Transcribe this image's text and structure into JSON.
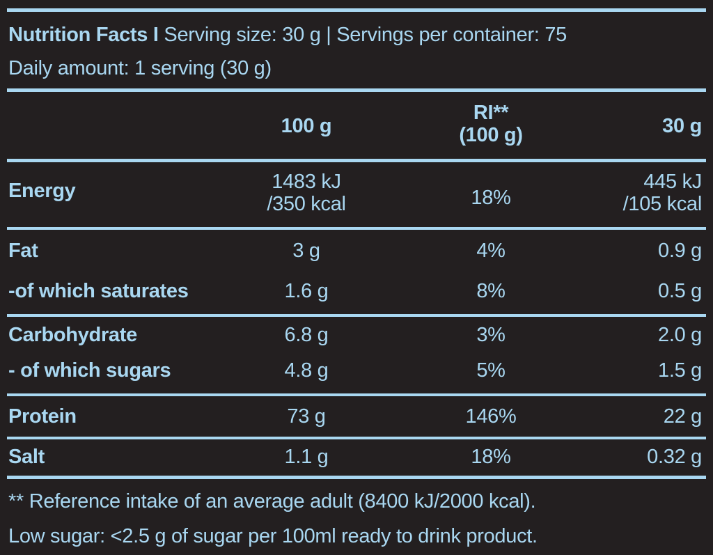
{
  "header": {
    "title": "Nutrition Facts I",
    "serving_info": "Serving size: 30 g | Servings per container: 75",
    "daily_amount": "Daily amount: 1 serving (30 g)"
  },
  "columns": {
    "per_100g": "100 g",
    "ri_line1": "RI**",
    "ri_line2": "(100 g)",
    "per_serving": "30 g"
  },
  "rows": {
    "energy": {
      "label": "Energy",
      "per_100g_line1": "1483 kJ",
      "per_100g_line2": "/350 kcal",
      "ri": "18%",
      "per_serving_line1": "445 kJ",
      "per_serving_line2": "/105 kcal"
    },
    "fat": {
      "label": "Fat",
      "per_100g": "3 g",
      "ri": "4%",
      "per_serving": "0.9 g"
    },
    "saturates": {
      "label": "-of which saturates",
      "per_100g": "1.6 g",
      "ri": "8%",
      "per_serving": "0.5 g"
    },
    "carbohydrate": {
      "label": "Carbohydrate",
      "per_100g": "6.8 g",
      "ri": "3%",
      "per_serving": "2.0 g"
    },
    "sugars": {
      "label": "- of which sugars",
      "per_100g": "4.8 g",
      "ri": "5%",
      "per_serving": "1.5 g"
    },
    "protein": {
      "label": "Protein",
      "per_100g": "73 g",
      "ri": "146%",
      "per_serving": "22 g"
    },
    "salt": {
      "label": "Salt",
      "per_100g": "1.1 g",
      "ri": "18%",
      "per_serving": "0.32 g"
    }
  },
  "footnotes": {
    "reference": "** Reference intake of an average adult (8400 kJ/2000 kcal).",
    "low_sugar": "Low sugar: <2.5 g of sugar per 100ml ready to drink product."
  },
  "colors": {
    "background": "#231f20",
    "text_and_rules": "#a9d7f1"
  }
}
